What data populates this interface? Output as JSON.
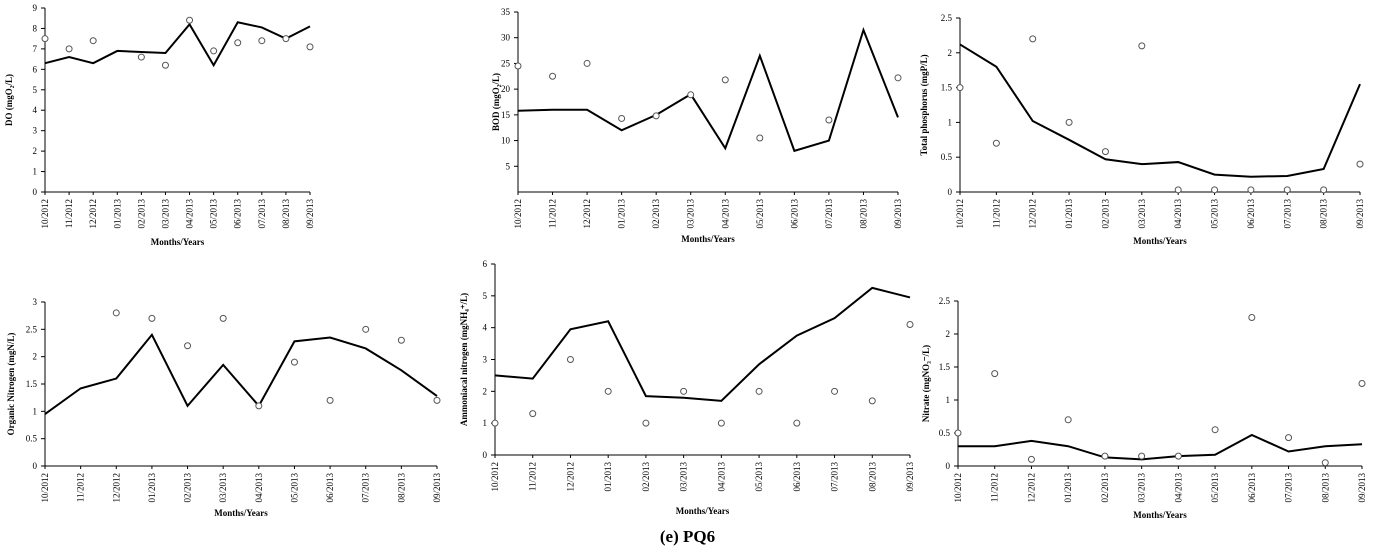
{
  "caption": "(e) PQ6",
  "chart_data": [
    {
      "type": "line",
      "xlabel": "Months/Years",
      "ylabel": "DO (mgO₂/L)",
      "ylim": [
        0,
        9
      ],
      "yticks": [
        "0",
        "1",
        "2",
        "3",
        "4",
        "5",
        "6",
        "7",
        "8",
        "9"
      ],
      "categories": [
        "10/2012",
        "11/2012",
        "12/2012",
        "01/2013",
        "02/2013",
        "03/2013",
        "04/2013",
        "05/2013",
        "06/2013",
        "07/2013",
        "08/2013",
        "09/2013"
      ],
      "series": [
        {
          "style": "line",
          "values": [
            6.3,
            6.6,
            6.3,
            6.9,
            6.85,
            6.8,
            8.2,
            6.2,
            8.3,
            8.05,
            7.5,
            8.1
          ]
        },
        {
          "style": "points",
          "values": [
            7.5,
            7.0,
            7.4,
            null,
            6.6,
            6.2,
            8.4,
            6.9,
            7.3,
            7.4,
            7.5,
            7.1
          ]
        }
      ]
    },
    {
      "type": "line",
      "xlabel": "Months/Years",
      "ylabel": "BOD (mgO₂/L)",
      "ylim": [
        0,
        35
      ],
      "yticks": [
        "5",
        "10",
        "15",
        "20",
        "25",
        "30",
        "35"
      ],
      "categories": [
        "10/2012",
        "11/2012",
        "12/2012",
        "01/2013",
        "02/2013",
        "03/2013",
        "04/2013",
        "05/2013",
        "06/2013",
        "07/2013",
        "08/2013",
        "09/2013"
      ],
      "series": [
        {
          "style": "line",
          "values": [
            15.8,
            16.0,
            16.0,
            12.0,
            15.0,
            19.0,
            8.5,
            26.5,
            8.0,
            10.0,
            31.5,
            14.5
          ]
        },
        {
          "style": "points",
          "values": [
            24.5,
            22.5,
            25.0,
            14.3,
            14.8,
            18.9,
            21.8,
            10.5,
            null,
            14.0,
            null,
            22.2
          ]
        }
      ]
    },
    {
      "type": "line",
      "xlabel": "Months/Years",
      "ylabel": "Total phosphorus (mgP/L)",
      "ylim": [
        0,
        2.5
      ],
      "yticks": [
        "0",
        "0.5",
        "1",
        "1.5",
        "2",
        "2.5"
      ],
      "categories": [
        "10/2012",
        "11/2012",
        "12/2012",
        "01/2013",
        "02/2013",
        "03/2013",
        "04/2013",
        "05/2013",
        "06/2013",
        "07/2013",
        "08/2013",
        "09/2013"
      ],
      "series": [
        {
          "style": "line",
          "values": [
            2.12,
            1.8,
            1.02,
            0.75,
            0.47,
            0.4,
            0.43,
            0.25,
            0.22,
            0.23,
            0.33,
            1.55
          ]
        },
        {
          "style": "points",
          "values": [
            1.5,
            0.7,
            2.2,
            1.0,
            0.58,
            2.1,
            0.03,
            0.03,
            0.03,
            0.03,
            0.03,
            0.4
          ]
        }
      ]
    },
    {
      "type": "line",
      "xlabel": "Months/Years",
      "ylabel": "Organic Nitrogen (mgN/L)",
      "ylim": [
        0,
        3
      ],
      "yticks": [
        "0",
        "0.5",
        "1",
        "1.5",
        "2",
        "2.5",
        "3"
      ],
      "categories": [
        "10/2012",
        "11/2012",
        "12/2012",
        "01/2013",
        "02/2013",
        "03/2013",
        "04/2013",
        "05/2013",
        "06/2013",
        "07/2013",
        "08/2013",
        "09/2013"
      ],
      "series": [
        {
          "style": "line",
          "values": [
            0.95,
            1.42,
            1.6,
            2.4,
            1.1,
            1.85,
            1.1,
            2.28,
            2.35,
            2.15,
            1.75,
            1.28
          ]
        },
        {
          "style": "points",
          "values": [
            null,
            null,
            2.8,
            2.7,
            2.2,
            2.7,
            1.1,
            1.9,
            1.2,
            2.5,
            2.3,
            1.2
          ]
        }
      ]
    },
    {
      "type": "line",
      "xlabel": "Months/Years",
      "ylabel": "Ammoniacal nitrogen (mgNH₄⁺/L)",
      "ylim": [
        0,
        6
      ],
      "yticks": [
        "0",
        "1",
        "2",
        "3",
        "4",
        "5",
        "6"
      ],
      "categories": [
        "10/2012",
        "11/2012",
        "12/2012",
        "01/2013",
        "02/2013",
        "03/2013",
        "04/2013",
        "05/2013",
        "06/2013",
        "07/2013",
        "08/2013",
        "09/2013"
      ],
      "series": [
        {
          "style": "line",
          "values": [
            2.5,
            2.4,
            3.95,
            4.2,
            1.85,
            1.8,
            1.7,
            2.85,
            3.75,
            4.3,
            5.25,
            4.95
          ]
        },
        {
          "style": "points",
          "values": [
            1.0,
            1.3,
            3.0,
            2.0,
            1.0,
            2.0,
            1.0,
            2.0,
            1.0,
            2.0,
            1.7,
            4.1
          ]
        }
      ]
    },
    {
      "type": "line",
      "xlabel": "Months/Years",
      "ylabel": "Nitrate (mgNO₃⁻/L)",
      "ylim": [
        0,
        2.5
      ],
      "yticks": [
        "0",
        "0.5",
        "1",
        "1.5",
        "2",
        "2.5"
      ],
      "categories": [
        "10/2012",
        "11/2012",
        "12/2012",
        "01/2013",
        "02/2013",
        "03/2013",
        "04/2013",
        "05/2013",
        "06/2013",
        "07/2013",
        "08/2013",
        "09/2013"
      ],
      "series": [
        {
          "style": "line",
          "values": [
            0.3,
            0.3,
            0.38,
            0.3,
            0.13,
            0.1,
            0.15,
            0.17,
            0.47,
            0.22,
            0.3,
            0.33
          ]
        },
        {
          "style": "points",
          "values": [
            0.5,
            1.4,
            0.1,
            0.7,
            0.15,
            0.15,
            0.15,
            0.55,
            2.25,
            0.43,
            0.05,
            1.25
          ]
        }
      ]
    }
  ]
}
